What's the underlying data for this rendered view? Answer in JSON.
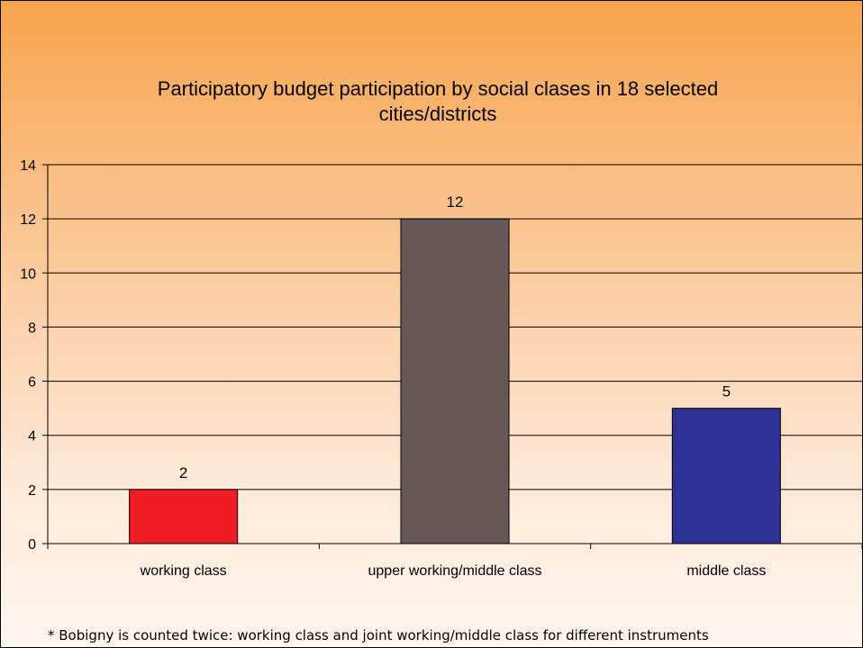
{
  "colors": {
    "background_top": "#f7a44c",
    "background_bottom": "#fff6ee",
    "gridline": "#000000"
  },
  "chart_data": {
    "type": "bar",
    "title": "Participatory budget participation by social clases in 18 selected\ncities/districts",
    "xlabel": "",
    "ylabel": "",
    "categories": [
      "working class",
      "upper working/middle class",
      "middle class"
    ],
    "values": [
      2,
      12,
      5
    ],
    "data_labels": [
      "2",
      "12",
      "5"
    ],
    "colors": [
      "#ee1c25",
      "#655857",
      "#2e3192"
    ],
    "ylim": [
      0,
      14
    ],
    "yticks": [
      0,
      2,
      4,
      6,
      8,
      10,
      12,
      14
    ],
    "grid": true,
    "legend": "none"
  },
  "footnote": "* Bobigny is counted twice: working class and joint working/middle class for different instruments"
}
